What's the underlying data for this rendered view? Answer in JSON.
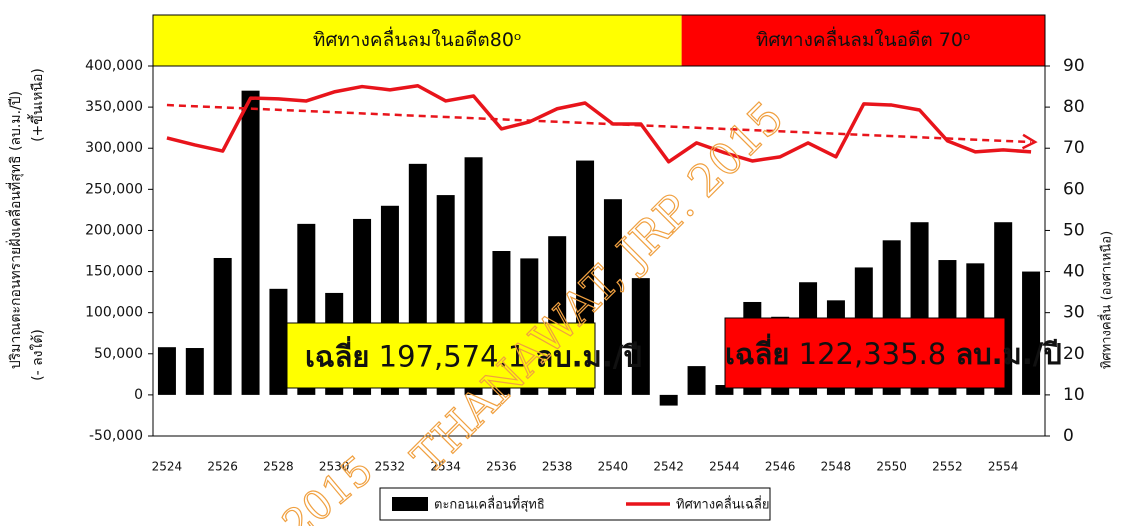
{
  "chart_data": {
    "type": "bar",
    "categories": [
      "2524",
      null,
      "2526",
      null,
      "2528",
      null,
      "2530",
      null,
      "2532",
      null,
      "2534",
      null,
      "2536",
      null,
      "2538",
      null,
      "2540",
      null,
      "2542",
      null,
      "2544",
      null,
      "2546",
      null,
      "2548",
      null,
      "2550",
      null,
      "2552",
      null,
      "2554",
      null
    ],
    "series": [
      {
        "name": "ตะกอนเคลื่อนที่สุทธิ",
        "type": "bar",
        "color": "#000000",
        "values": [
          58000,
          57000,
          166500,
          370000,
          129000,
          208000,
          124000,
          214000,
          230000,
          281000,
          243000,
          289000,
          175000,
          166000,
          193000,
          285000,
          238000,
          142000,
          -13000,
          35000,
          12000,
          113000,
          95000,
          137000,
          115000,
          155000,
          188000,
          210000,
          164000,
          160000,
          210000,
          150000
        ]
      },
      {
        "name": "ทิศทางคลื่นเฉลี่ย",
        "type": "line",
        "axis": "y2",
        "color": "#e8141b",
        "values": [
          72.5,
          70.8,
          69.3,
          82.2,
          82,
          81.5,
          83.7,
          85,
          84.2,
          85.2,
          81.5,
          82.7,
          74.7,
          76.4,
          79.6,
          81,
          75.9,
          75.9,
          66.7,
          71.3,
          68.9,
          66.9,
          67.9,
          71.3,
          67.9,
          80.8,
          80.5,
          79.3,
          71.8,
          69.1,
          69.6,
          69.1
        ]
      }
    ],
    "trendline": {
      "color": "#e8141b",
      "start": 80.5,
      "end": 71.5,
      "axis": "y2"
    },
    "ylim": [
      -50000,
      400000
    ],
    "yticks": [
      {
        "value": -50000,
        "label": "-50,000"
      },
      0,
      {
        "value": 50000,
        "label": "50,000"
      },
      {
        "value": 100000,
        "label": "100,000"
      },
      {
        "value": 150000,
        "label": "150,000"
      },
      {
        "value": 200000,
        "label": "200,000"
      },
      {
        "value": 250000,
        "label": "250,000"
      },
      {
        "value": 300000,
        "label": "300,000"
      },
      {
        "value": 350000,
        "label": "350,000"
      },
      {
        "value": 400000,
        "label": "400,000"
      }
    ],
    "y2lim": [
      0,
      90
    ],
    "y2ticks": [
      0,
      10,
      20,
      30,
      40,
      50,
      60,
      70,
      80,
      90
    ],
    "ylabel": "ปริมาณตะกอนทรายฝั่งเคลื่อนที่สุทธิ (ลบ.ม./ปี)",
    "ylabel_up": "(+ขึ้นเหนือ)",
    "ylabel_down": "(- ลงใต้)",
    "y2label": "ทิศทางคลื่น (องศาเหนือ)",
    "periods": [
      {
        "label": "ทิศทางคลื่นลมในอดีต80ᵒ",
        "color": "#ffff00"
      },
      {
        "label": "ทิศทางคลื่นลมในอดีต 70ᵒ",
        "color": "#ff0000"
      }
    ],
    "annotations": [
      {
        "bold": "เฉลี่ย",
        "number": "197,574.1",
        "unit": "ลบ.ม./ปี",
        "color": "#ffff00"
      },
      {
        "bold": "เฉลี่ย",
        "number": "122,335.8",
        "unit": "ลบ.ม./ปี",
        "color": "#ff0000"
      }
    ],
    "watermark": "THANAWAT, JRP. 2015",
    "watermark_small": "2015",
    "legend": "bottom"
  }
}
